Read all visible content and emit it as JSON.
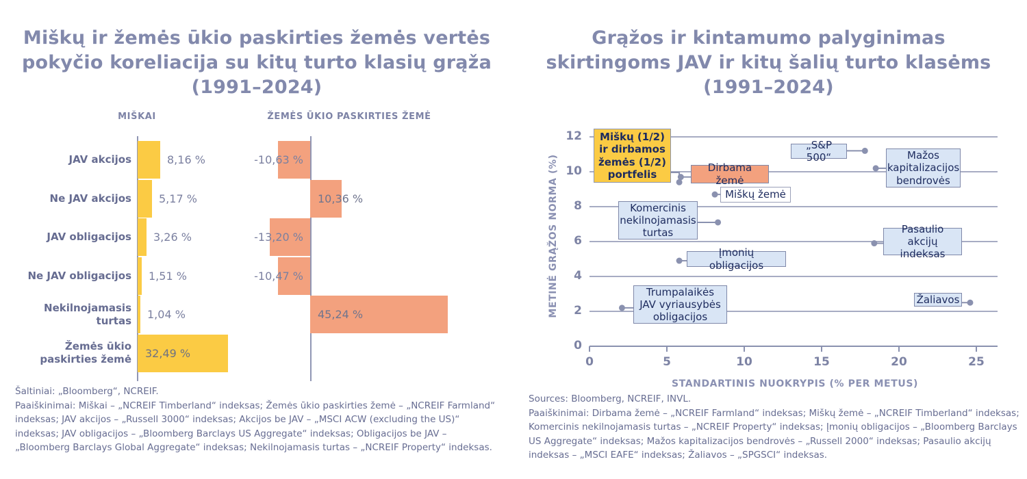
{
  "colors": {
    "yellow": "#FBCB44",
    "salmon": "#F3A17E",
    "light_blue": "#D9E5F5",
    "white": "#FFFFFF",
    "grid": "#8A91AF",
    "title_text": "#8289AC"
  },
  "footnotes": {
    "left_sources": "Šaltiniai: „Bloomberg“, NCREIF.",
    "left_notes": "Paaiškinimai: Miškai – „NCREIF Timberland“ indeksas; Žemės ūkio paskirties žemė – „NCREIF Farmland“ indeksas; JAV akcijos – „Russell 3000“ indeksas; Akcijos be JAV – „MSCI ACW (excluding the US)“ indeksas; JAV obligacijos – „Bloomberg Barclays US Aggregate“ indeksas; Obligacijos be JAV – „Bloomberg Barclays Global Aggregate“ indeksas; Nekilnojamasis turtas – „NCREIF Property“ indeksas.",
    "right_sources": "Sources: Bloomberg, NCREIF, INVL.",
    "right_notes": "Paaiškinimai: Dirbama žemė – „NCREIF Farmland“ indeksas; Miškų žemė – „NCREIF Timberland“ indeksas; Komercinis nekilnojamasis turtas – „NCREIF Property“ indeksas; Įmonių obligacijos – „Bloomberg Barclays US Aggregate“ indeksas; Mažos kapitalizacijos bendrovės – „Russell 2000“ indeksas; Pasaulio akcijų indeksas – „MSCI EAFE“ indeksas; Žaliavos – „SPGSCI“ indeksas."
  },
  "chart_data": [
    {
      "type": "bar",
      "orientation": "horizontal",
      "title": "Miškų ir žemės ūkio paskirties žemės vertės pokyčio koreliacija su kitų turto klasių grąža (1991–2024)",
      "categories": [
        "JAV akcijos",
        "Ne JAV akcijos",
        "JAV obligacijos",
        "Ne JAV obligacijos",
        "Nekilnojamasis turtas",
        "Žemės ūkio paskirties žemė"
      ],
      "series": [
        {
          "name": "MIŠKAI",
          "color": "#FBCB44",
          "values": [
            8.16,
            5.17,
            3.26,
            1.51,
            1.04,
            32.49
          ],
          "labels": [
            "8,16 %",
            "5,17 %",
            "3,26 %",
            "1,51 %",
            "1,04 %",
            "32,49 %"
          ]
        },
        {
          "name": "ŽEMĖS ŪKIO PASKIRTIES ŽEMĖ",
          "color": "#F3A17E",
          "values": [
            -10.63,
            10.36,
            -13.2,
            -10.47,
            45.24,
            null
          ],
          "labels": [
            "-10,63 %",
            "10,36 %",
            "-13,20 %",
            "-10,47 %",
            "45,24 %",
            null
          ]
        }
      ]
    },
    {
      "type": "scatter",
      "title": "Grąžos ir kintamumo palyginimas skirtingoms JAV ir kitų šalių turto klasėms (1991–2024)",
      "xlabel": "STANDARTINIS NUOKRYPIS (% PER METUS)",
      "ylabel": "METINĖ GRĄŽOS NORMA (%)",
      "xlim": [
        0,
        25
      ],
      "ylim": [
        0,
        12
      ],
      "xticks": [
        0,
        5,
        10,
        15,
        20,
        25
      ],
      "yticks": [
        0,
        2,
        4,
        6,
        8,
        10,
        12
      ],
      "grid": "horizontal",
      "points": [
        {
          "label": "Miškų (1/2) ir dirbamos žemės (1/2) portfelis",
          "x": 5.8,
          "y": 9.4,
          "box": "yellow"
        },
        {
          "label": "Dirbama žemė",
          "x": 5.9,
          "y": 9.7,
          "box": "salmon"
        },
        {
          "label": "Miškų žemė",
          "x": 8.1,
          "y": 8.7,
          "box": "white"
        },
        {
          "label": "„S&P 500“",
          "x": 17.8,
          "y": 11.2,
          "box": "blue"
        },
        {
          "label": "Mažos kapitalizacijos bendrovės",
          "x": 18.5,
          "y": 10.2,
          "box": "blue"
        },
        {
          "label": "Komercinis nekilnojamasis turtas",
          "x": 8.3,
          "y": 7.1,
          "box": "blue"
        },
        {
          "label": "Įmonių obligacijos",
          "x": 5.8,
          "y": 4.9,
          "box": "blue"
        },
        {
          "label": "Trumpalaikės JAV vyriausybės obligacijos",
          "x": 2.1,
          "y": 2.2,
          "box": "blue"
        },
        {
          "label": "Pasaulio akcijų indeksas",
          "x": 18.4,
          "y": 5.9,
          "box": "blue"
        },
        {
          "label": "Žaliavos",
          "x": 24.6,
          "y": 2.5,
          "box": "blue"
        }
      ]
    }
  ]
}
